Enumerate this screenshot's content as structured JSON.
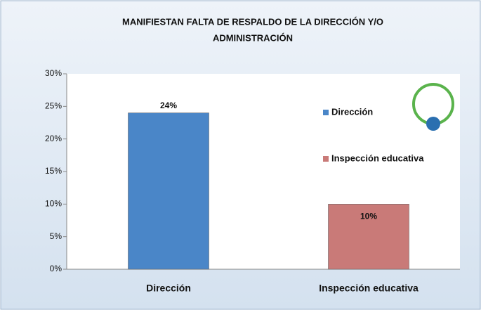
{
  "chart_data": {
    "type": "bar",
    "title": [
      "MANIFIESTAN FALTA DE RESPALDO  DE LA DIRECCIÓN Y/O",
      "ADMINISTRACIÓN"
    ],
    "categories": [
      "Dirección",
      "Inspección educativa"
    ],
    "values": [
      24,
      10
    ],
    "value_labels": [
      "24%",
      "10%"
    ],
    "colors": [
      "#4a86c8",
      "#c97a78"
    ],
    "ylim": [
      0,
      30
    ],
    "yticks": [
      {
        "value": 0,
        "label": "0%"
      },
      {
        "value": 5,
        "label": "5%"
      },
      {
        "value": 10,
        "label": "10%"
      },
      {
        "value": 15,
        "label": "15%"
      },
      {
        "value": 20,
        "label": "20%"
      },
      {
        "value": 25,
        "label": "25%"
      },
      {
        "value": 30,
        "label": "30%"
      }
    ],
    "grid": false,
    "legend": "right"
  }
}
